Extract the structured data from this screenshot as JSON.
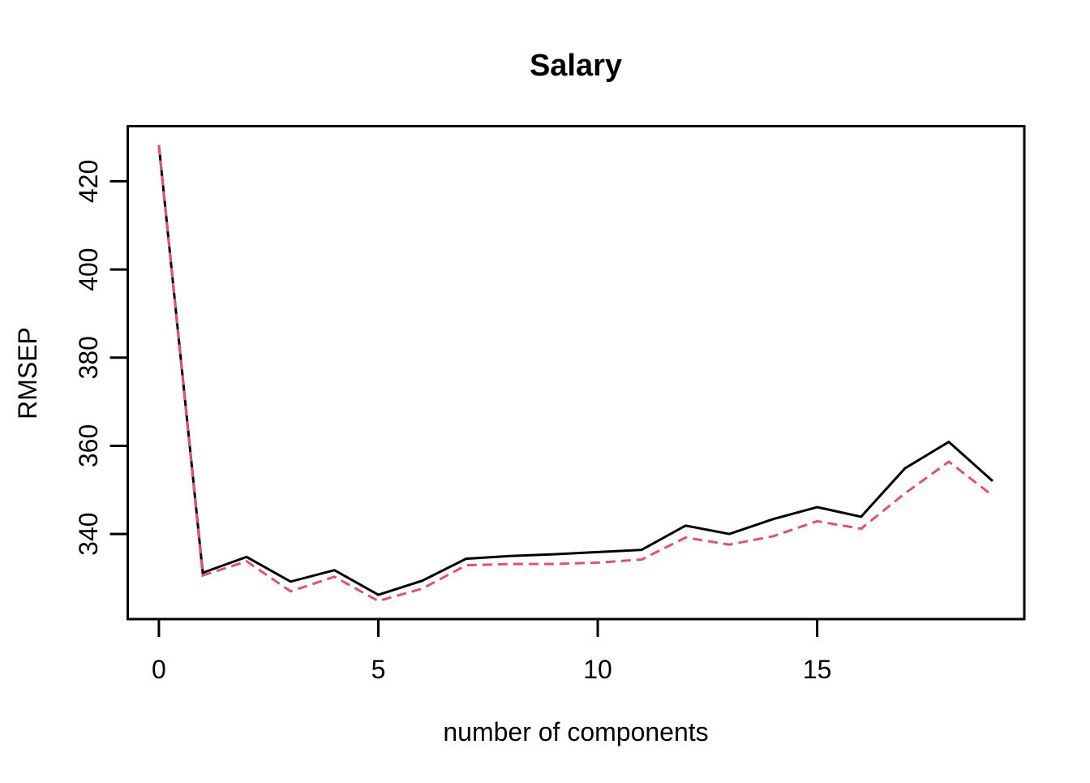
{
  "chart_data": {
    "type": "line",
    "title": "Salary",
    "xlabel": "number of components",
    "ylabel": "RMSEP",
    "x": [
      0,
      1,
      2,
      3,
      4,
      5,
      6,
      7,
      8,
      9,
      10,
      11,
      12,
      13,
      14,
      15,
      16,
      17,
      18,
      19
    ],
    "series": [
      {
        "name": "black-solid",
        "color": "#000000",
        "linetype": "solid",
        "values": [
          428.2,
          331.2,
          334.8,
          329.2,
          331.8,
          326.2,
          329.4,
          334.4,
          335.0,
          335.4,
          335.9,
          336.4,
          341.9,
          340.0,
          343.4,
          346.1,
          343.9,
          354.9,
          360.9,
          352.0
        ]
      },
      {
        "name": "red-dashed",
        "color": "#DF536B",
        "linetype": "dashed",
        "values": [
          428.2,
          330.6,
          333.8,
          327.0,
          330.3,
          324.8,
          327.6,
          332.9,
          333.2,
          333.2,
          333.5,
          334.2,
          339.2,
          337.6,
          339.5,
          342.9,
          341.2,
          349.2,
          356.4,
          348.7
        ]
      }
    ],
    "x_ticks": [
      0,
      5,
      10,
      15
    ],
    "y_ticks": [
      340,
      360,
      380,
      400,
      420
    ],
    "xlim": [
      -0.71,
      19.72
    ],
    "ylim": [
      320.7,
      432.5
    ],
    "grid": false,
    "legend": "none",
    "axis_color": "#000000",
    "background_color": "#ffffff"
  }
}
